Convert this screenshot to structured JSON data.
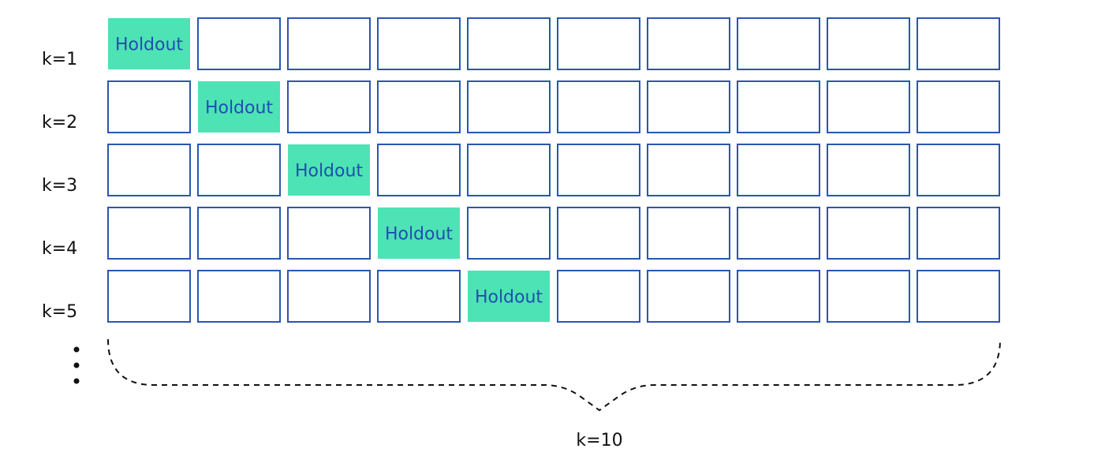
{
  "holdout_label": "Holdout",
  "colors": {
    "cell_border": "#2b55b0",
    "holdout_fill": "#4de3b4",
    "holdout_text": "#1f4fae",
    "brace": "#111111"
  },
  "rows": [
    {
      "label": "k=1",
      "holdout_index": 0
    },
    {
      "label": "k=2",
      "holdout_index": 1
    },
    {
      "label": "k=3",
      "holdout_index": 2
    },
    {
      "label": "k=4",
      "holdout_index": 3
    },
    {
      "label": "k=5",
      "holdout_index": 4
    }
  ],
  "folds_per_row": 10,
  "continuation_marker": "vertical-ellipsis",
  "brace_label": "k=10"
}
